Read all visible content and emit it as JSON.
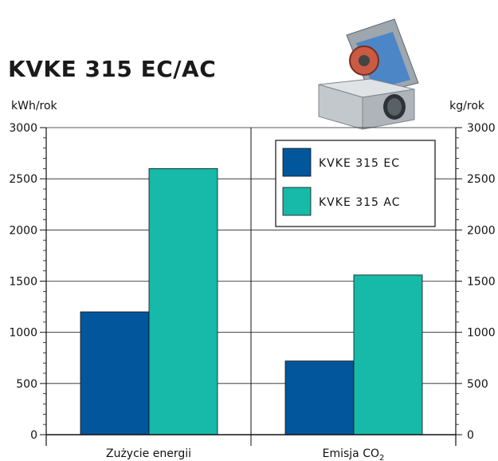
{
  "chart_data": {
    "type": "bar",
    "title": "KVKE 315 EC/AC",
    "y_left_unit": "kWh/rok",
    "y_right_unit": "kg/rok",
    "ylim": [
      0,
      3000
    ],
    "yticks": [
      "0",
      "500",
      "1000",
      "1500",
      "2000",
      "2500",
      "3000"
    ],
    "categories": [
      {
        "text": "Zużycie energii",
        "sub": ""
      },
      {
        "text": "Emisja CO",
        "sub": "2"
      }
    ],
    "series": [
      {
        "name": "KVKE 315 EC",
        "color": "#02579c",
        "values": [
          1200,
          720
        ]
      },
      {
        "name": "KVKE 315 AC",
        "color": "#17b9a9",
        "values": [
          2600,
          1560
        ]
      }
    ],
    "grid": true,
    "legend_position": "top-right"
  }
}
